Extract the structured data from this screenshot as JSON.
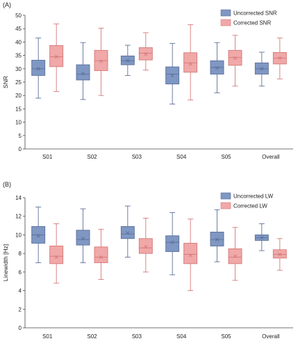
{
  "chart_data": [
    {
      "type": "boxplot",
      "panel_label": "(A)",
      "ylabel": "SNR",
      "ylim": [
        0,
        50
      ],
      "yticks": [
        0,
        5,
        10,
        15,
        20,
        25,
        30,
        35,
        40,
        45,
        50
      ],
      "categories": [
        "S01",
        "S02",
        "S03",
        "S04",
        "S05",
        "Overall"
      ],
      "legend_position": "top-right",
      "grid": false,
      "series": [
        {
          "name": "Uncorrected SNR",
          "color": "#7f97c3",
          "edge": "#5b6f9a",
          "boxes": [
            {
              "min": 19,
              "q1": 27.5,
              "median": 30,
              "mean": 30,
              "q3": 33.2,
              "max": 41.5
            },
            {
              "min": 18.5,
              "q1": 25.8,
              "median": 28,
              "mean": 28.2,
              "q3": 31.5,
              "max": 39.8
            },
            {
              "min": 27.5,
              "q1": 31.5,
              "median": 33,
              "mean": 33,
              "q3": 34.8,
              "max": 38.8
            },
            {
              "min": 16.8,
              "q1": 24.3,
              "median": 28,
              "mean": 27.5,
              "q3": 30.7,
              "max": 39.5
            },
            {
              "min": 21,
              "q1": 28,
              "median": 30.5,
              "mean": 30.3,
              "q3": 33,
              "max": 39.8
            },
            {
              "min": 23.5,
              "q1": 28,
              "median": 30,
              "mean": 30,
              "q3": 32.2,
              "max": 36.2
            }
          ]
        },
        {
          "name": "Corrected SNR",
          "color": "#f0a8a8",
          "edge": "#d67878",
          "boxes": [
            {
              "min": 21.5,
              "q1": 30.8,
              "median": 34.5,
              "mean": 34.5,
              "q3": 38.7,
              "max": 46.8
            },
            {
              "min": 20,
              "q1": 29.3,
              "median": 33,
              "mean": 32.8,
              "q3": 36.9,
              "max": 45.2
            },
            {
              "min": 29.5,
              "q1": 33.3,
              "median": 35.8,
              "mean": 35.5,
              "q3": 37.9,
              "max": 43.5
            },
            {
              "min": 18.3,
              "q1": 28.7,
              "median": 32.2,
              "mean": 31.8,
              "q3": 36,
              "max": 46.5
            },
            {
              "min": 23.5,
              "q1": 31.3,
              "median": 34.2,
              "mean": 34,
              "q3": 36.9,
              "max": 42.5
            },
            {
              "min": 26.2,
              "q1": 31.8,
              "median": 34,
              "mean": 34,
              "q3": 36.1,
              "max": 41.5
            }
          ]
        }
      ]
    },
    {
      "type": "boxplot",
      "panel_label": "(B)",
      "ylabel": "Linewidth [Hz]",
      "ylim": [
        0,
        14
      ],
      "yticks": [
        0,
        2,
        4,
        6,
        8,
        10,
        12,
        14
      ],
      "categories": [
        "S01",
        "S02",
        "S03",
        "S04",
        "S05",
        "Overall"
      ],
      "legend_position": "top-right",
      "grid": false,
      "series": [
        {
          "name": "Uncorrected LW",
          "color": "#7f97c3",
          "edge": "#5b6f9a",
          "boxes": [
            {
              "min": 7,
              "q1": 9.1,
              "median": 10,
              "mean": 9.9,
              "q3": 10.9,
              "max": 13
            },
            {
              "min": 7,
              "q1": 8.9,
              "median": 9.5,
              "mean": 9.6,
              "q3": 10.5,
              "max": 12.8
            },
            {
              "min": 7.6,
              "q1": 9.6,
              "median": 10.1,
              "mean": 10.2,
              "q3": 10.9,
              "max": 13.1
            },
            {
              "min": 5.7,
              "q1": 8.2,
              "median": 9.2,
              "mean": 9.2,
              "q3": 9.9,
              "max": 12.4
            },
            {
              "min": 7.1,
              "q1": 8.8,
              "median": 9.5,
              "mean": 9.5,
              "q3": 10.3,
              "max": 12.7
            },
            {
              "min": 8.3,
              "q1": 9.4,
              "median": 9.7,
              "mean": 9.7,
              "q3": 10,
              "max": 11.2
            }
          ]
        },
        {
          "name": "Corrected LW",
          "color": "#f0a8a8",
          "edge": "#d67878",
          "boxes": [
            {
              "min": 4.8,
              "q1": 6.9,
              "median": 7.7,
              "mean": 7.6,
              "q3": 8.8,
              "max": 11.2
            },
            {
              "min": 5.2,
              "q1": 7,
              "median": 7.6,
              "mean": 7.6,
              "q3": 8.7,
              "max": 10.6
            },
            {
              "min": 6,
              "q1": 8,
              "median": 8.6,
              "mean": 8.7,
              "q3": 9.6,
              "max": 11.8
            },
            {
              "min": 4,
              "q1": 6.9,
              "median": 7.9,
              "mean": 7.8,
              "q3": 9.1,
              "max": 11.7
            },
            {
              "min": 5.1,
              "q1": 6.9,
              "median": 7.6,
              "mean": 7.7,
              "q3": 8.5,
              "max": 10.8
            },
            {
              "min": 6.2,
              "q1": 7.5,
              "median": 7.9,
              "mean": 7.9,
              "q3": 8.4,
              "max": 9.6
            }
          ]
        }
      ]
    }
  ]
}
